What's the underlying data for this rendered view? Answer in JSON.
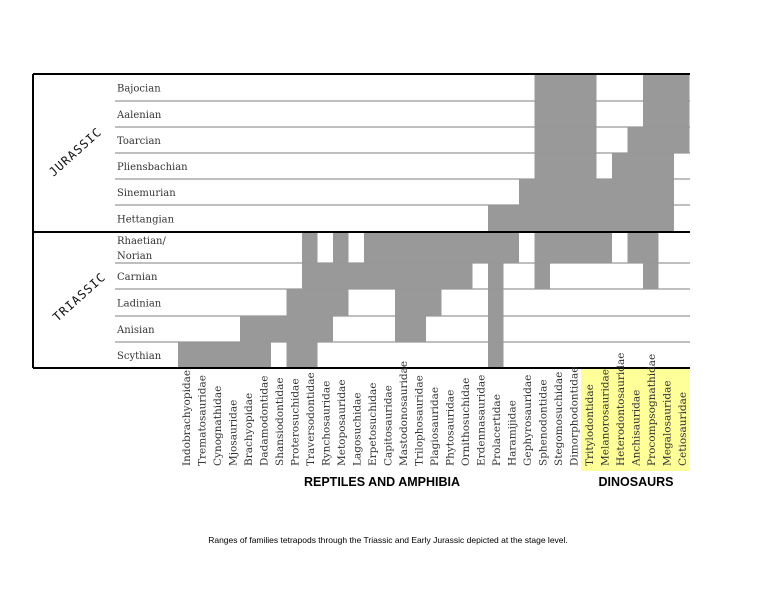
{
  "chart_data": {
    "type": "range-chart",
    "caption": "Ranges of families tetrapods through the Triassic and Early Jurassic depicted at the stage level.",
    "periods": [
      {
        "name": "JURASSIC",
        "stages": [
          "Hettangian",
          "Sinemurian",
          "Pliensbachian",
          "Toarcian",
          "Aalenian",
          "Bajocian"
        ]
      },
      {
        "name": "TRIASSIC",
        "stages": [
          "Scythian",
          "Anisian",
          "Ladinian",
          "Carnian",
          "Rhaetian/Norian"
        ]
      }
    ],
    "stages": [
      "Scythian",
      "Anisian",
      "Ladinian",
      "Carnian",
      "Rhaetian/Norian",
      "Hettangian",
      "Sinemurian",
      "Pliensbachian",
      "Toarcian",
      "Aalenian",
      "Bajocian"
    ],
    "stage_labels": [
      "Scythian",
      "Anisian",
      "Ladinian",
      "Carnian",
      [
        "Rhaetian/",
        "Norian"
      ],
      "Hettangian",
      "Sinemurian",
      "Pliensbachian",
      "Toarcian",
      "Aalenian",
      "Bajocian"
    ],
    "groups": [
      {
        "name": "REPTILES AND AMPHIBIA",
        "from": 0,
        "to": 25
      },
      {
        "name": "DINOSAURS",
        "from": 26,
        "to": 32,
        "highlight": "#ffff99"
      }
    ],
    "bar_color": "#999999",
    "families": [
      {
        "name": "Indobrachyopidae",
        "ranges": [
          [
            0,
            0
          ]
        ]
      },
      {
        "name": "Trematosauridae",
        "ranges": [
          [
            0,
            0
          ]
        ]
      },
      {
        "name": "Cynognathidae",
        "ranges": [
          [
            0,
            0
          ]
        ]
      },
      {
        "name": "Mjosauridae",
        "ranges": [
          [
            0,
            0
          ]
        ]
      },
      {
        "name": "Brachyopidae",
        "ranges": [
          [
            0,
            1
          ]
        ]
      },
      {
        "name": "Dadamodontidae",
        "ranges": [
          [
            0,
            1
          ]
        ]
      },
      {
        "name": "Shansiodontidae",
        "ranges": [
          [
            1,
            1
          ]
        ]
      },
      {
        "name": "Proterosuchidae",
        "ranges": [
          [
            0,
            2
          ]
        ]
      },
      {
        "name": "Traversodontidae",
        "ranges": [
          [
            0,
            4
          ]
        ]
      },
      {
        "name": "Rynchosauridae",
        "ranges": [
          [
            1,
            3
          ]
        ]
      },
      {
        "name": "Metoposauridae",
        "ranges": [
          [
            2,
            4
          ]
        ]
      },
      {
        "name": "Lagosuchidae",
        "ranges": [
          [
            3,
            3
          ]
        ]
      },
      {
        "name": "Erpetosuchidae",
        "ranges": [
          [
            3,
            4
          ]
        ]
      },
      {
        "name": "Capitosauridae",
        "ranges": [
          [
            3,
            4
          ]
        ]
      },
      {
        "name": "Mastodonosauridae",
        "ranges": [
          [
            1,
            4
          ]
        ]
      },
      {
        "name": "Trilophosauridae",
        "ranges": [
          [
            1,
            4
          ]
        ]
      },
      {
        "name": "Plagiosauridae",
        "ranges": [
          [
            2,
            4
          ]
        ]
      },
      {
        "name": "Phytosauridae",
        "ranges": [
          [
            3,
            4
          ]
        ]
      },
      {
        "name": "Ornithosuchidae",
        "ranges": [
          [
            3,
            4
          ]
        ]
      },
      {
        "name": "Erdennasauridae",
        "ranges": [
          [
            4,
            4
          ]
        ]
      },
      {
        "name": "Prolacertidae",
        "ranges": [
          [
            0,
            5
          ]
        ]
      },
      {
        "name": "Haramijidae",
        "ranges": [
          [
            4,
            5
          ]
        ]
      },
      {
        "name": "Gephyrosauridae",
        "ranges": [
          [
            5,
            6
          ]
        ]
      },
      {
        "name": "Sphenodontidae",
        "ranges": [
          [
            3,
            10
          ]
        ]
      },
      {
        "name": "Stegomosuchidae",
        "ranges": [
          [
            4,
            10
          ]
        ]
      },
      {
        "name": "Dimorphodontidae",
        "ranges": [
          [
            4,
            10
          ]
        ]
      },
      {
        "name": "Tritylodontidae",
        "ranges": [
          [
            4,
            10
          ]
        ]
      },
      {
        "name": "Melanorosauridae",
        "ranges": [
          [
            4,
            6
          ]
        ]
      },
      {
        "name": "Heterodontosauridae",
        "ranges": [
          [
            5,
            7
          ]
        ]
      },
      {
        "name": "Anchisauridae",
        "ranges": [
          [
            4,
            8
          ]
        ]
      },
      {
        "name": "Procompsognathidae",
        "ranges": [
          [
            3,
            10
          ]
        ]
      },
      {
        "name": "Megalosauridae",
        "ranges": [
          [
            5,
            10
          ]
        ]
      },
      {
        "name": "Cetiosauridae",
        "ranges": [
          [
            8,
            10
          ]
        ]
      }
    ]
  }
}
